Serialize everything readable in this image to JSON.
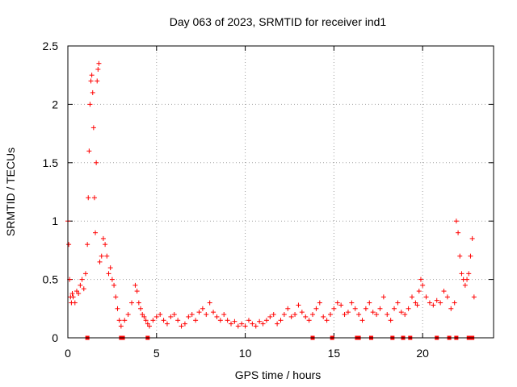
{
  "chart_data": {
    "type": "scatter",
    "title": "Day 063 of 2023, SRMTID for receiver ind1",
    "xlabel": "GPS time / hours",
    "ylabel": "SRMTID / TECUs",
    "xlim": [
      0,
      24
    ],
    "ylim": [
      0,
      2.5
    ],
    "x_ticks": [
      0,
      5,
      10,
      15,
      20
    ],
    "x_tick_labels": [
      "0",
      "5",
      "10",
      "15",
      "20"
    ],
    "y_ticks": [
      0,
      0.5,
      1,
      1.5,
      2,
      2.5
    ],
    "y_tick_labels": [
      "0",
      "0.5",
      "1",
      "1.5",
      "2",
      "2.5"
    ],
    "grid": true,
    "marker": "+",
    "series_color": "#ff0000",
    "series": [
      {
        "name": "SRMTID",
        "x": [
          0.0,
          0.05,
          0.1,
          0.15,
          0.2,
          0.25,
          0.3,
          0.4,
          0.5,
          0.6,
          0.7,
          0.8,
          0.9,
          1.0,
          1.1,
          1.15,
          1.2,
          1.25,
          1.3,
          1.35,
          1.4,
          1.45,
          1.5,
          1.55,
          1.6,
          1.65,
          1.7,
          1.75,
          1.8,
          1.9,
          2.0,
          2.1,
          2.2,
          2.3,
          2.4,
          2.5,
          2.6,
          2.7,
          2.8,
          2.9,
          3.0,
          3.2,
          3.4,
          3.6,
          3.8,
          3.9,
          4.0,
          4.1,
          4.2,
          4.3,
          4.4,
          4.5,
          4.6,
          4.8,
          5.0,
          5.2,
          5.4,
          5.6,
          5.8,
          6.0,
          6.2,
          6.4,
          6.6,
          6.8,
          7.0,
          7.2,
          7.4,
          7.6,
          7.8,
          8.0,
          8.2,
          8.4,
          8.6,
          8.8,
          9.0,
          9.2,
          9.4,
          9.6,
          9.8,
          10.0,
          10.2,
          10.4,
          10.6,
          10.8,
          11.0,
          11.2,
          11.4,
          11.6,
          11.8,
          12.0,
          12.2,
          12.4,
          12.6,
          12.8,
          13.0,
          13.2,
          13.4,
          13.6,
          13.8,
          14.0,
          14.2,
          14.4,
          14.6,
          14.8,
          15.0,
          15.2,
          15.4,
          15.6,
          15.8,
          16.0,
          16.2,
          16.4,
          16.6,
          16.8,
          17.0,
          17.2,
          17.4,
          17.6,
          17.8,
          18.0,
          18.2,
          18.4,
          18.6,
          18.8,
          19.0,
          19.2,
          19.4,
          19.6,
          19.7,
          19.8,
          19.9,
          20.0,
          20.2,
          20.4,
          20.6,
          20.8,
          21.0,
          21.2,
          21.4,
          21.6,
          21.8,
          21.9,
          22.0,
          22.1,
          22.2,
          22.3,
          22.4,
          22.5,
          22.6,
          22.7,
          22.8,
          22.9
        ],
        "y": [
          1.0,
          0.8,
          0.5,
          0.35,
          0.3,
          0.38,
          0.35,
          0.3,
          0.4,
          0.38,
          0.45,
          0.5,
          0.42,
          0.55,
          0.8,
          1.2,
          1.6,
          2.0,
          2.2,
          2.25,
          2.1,
          1.8,
          1.2,
          0.9,
          1.5,
          2.2,
          2.3,
          2.35,
          0.65,
          0.7,
          0.85,
          0.8,
          0.7,
          0.55,
          0.6,
          0.5,
          0.45,
          0.35,
          0.25,
          0.15,
          0.1,
          0.15,
          0.2,
          0.3,
          0.45,
          0.4,
          0.3,
          0.25,
          0.2,
          0.18,
          0.15,
          0.12,
          0.1,
          0.15,
          0.18,
          0.2,
          0.15,
          0.12,
          0.18,
          0.2,
          0.15,
          0.1,
          0.12,
          0.18,
          0.2,
          0.15,
          0.22,
          0.25,
          0.2,
          0.3,
          0.22,
          0.18,
          0.15,
          0.2,
          0.15,
          0.12,
          0.14,
          0.1,
          0.12,
          0.1,
          0.15,
          0.12,
          0.1,
          0.14,
          0.12,
          0.15,
          0.18,
          0.2,
          0.12,
          0.15,
          0.2,
          0.25,
          0.18,
          0.2,
          0.28,
          0.22,
          0.18,
          0.15,
          0.2,
          0.25,
          0.3,
          0.18,
          0.15,
          0.2,
          0.25,
          0.3,
          0.28,
          0.2,
          0.22,
          0.3,
          0.25,
          0.2,
          0.15,
          0.25,
          0.3,
          0.22,
          0.2,
          0.25,
          0.35,
          0.2,
          0.15,
          0.25,
          0.3,
          0.22,
          0.2,
          0.25,
          0.35,
          0.3,
          0.28,
          0.4,
          0.5,
          0.45,
          0.35,
          0.3,
          0.28,
          0.32,
          0.3,
          0.4,
          0.35,
          0.25,
          0.3,
          1.0,
          0.9,
          0.7,
          0.55,
          0.5,
          0.45,
          0.5,
          0.55,
          0.7,
          0.85,
          0.35
        ]
      }
    ],
    "baseline_flags_x": [
      1.1,
      3.0,
      3.1,
      4.5,
      13.8,
      14.9,
      16.3,
      16.4,
      17.1,
      18.3,
      18.9,
      19.3,
      20.8,
      21.5,
      21.9,
      22.6,
      22.8
    ]
  }
}
